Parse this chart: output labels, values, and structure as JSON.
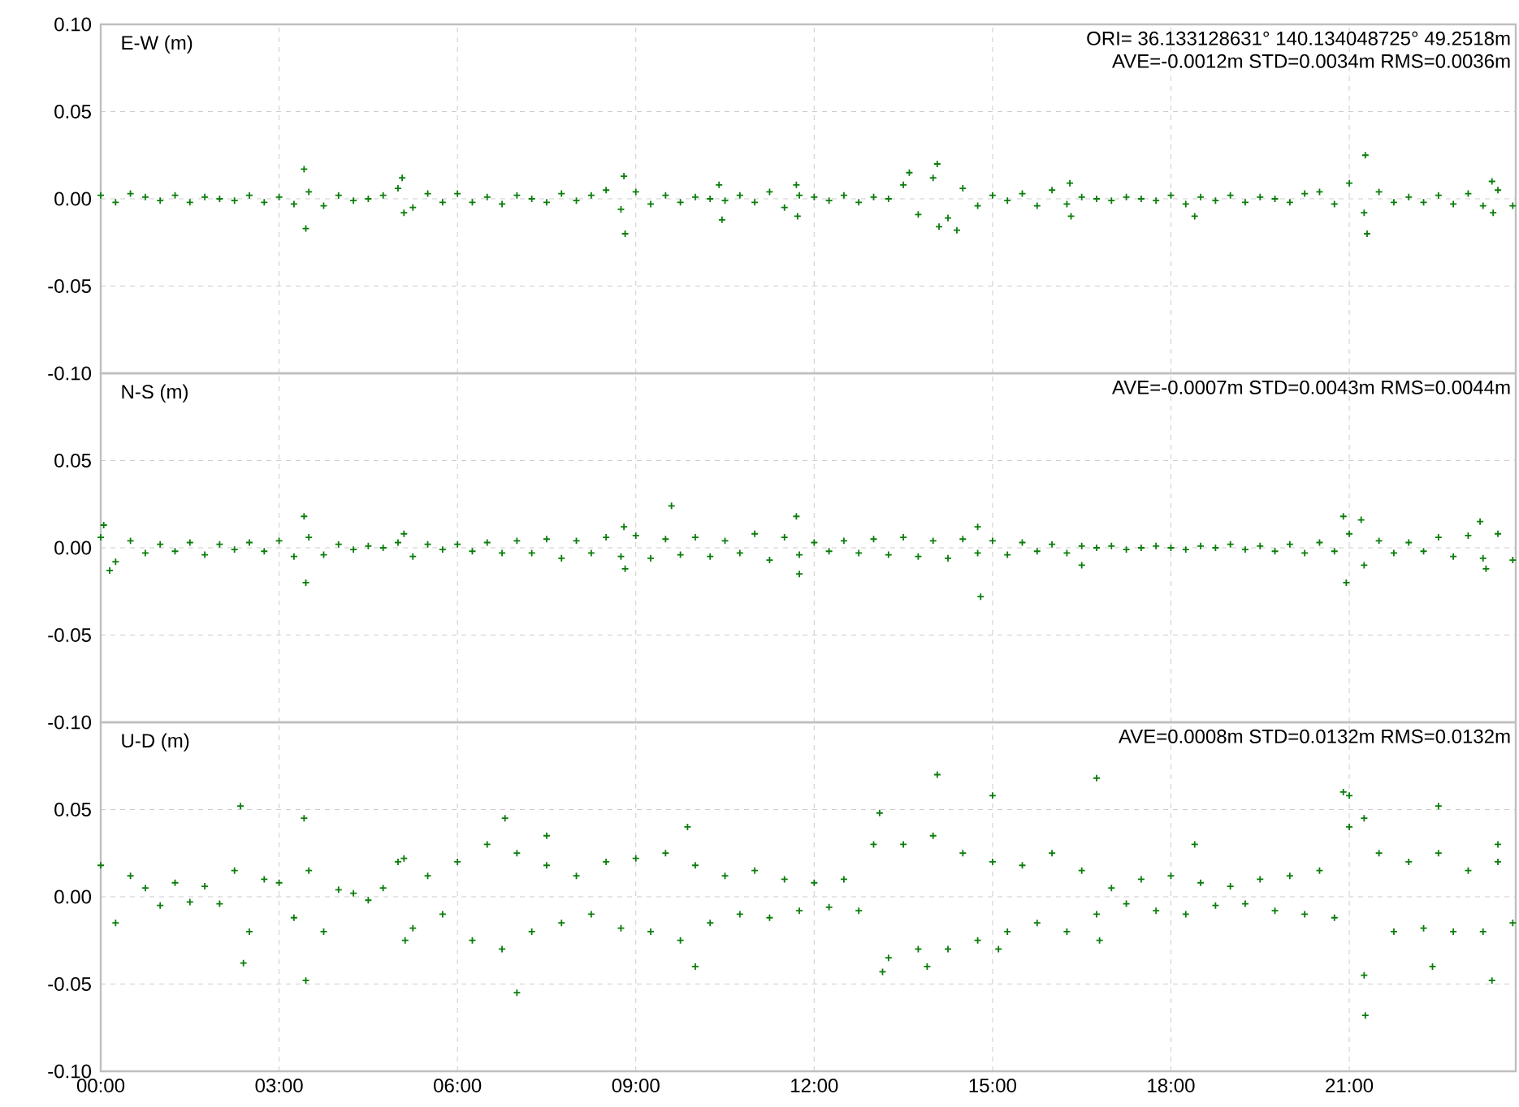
{
  "chart_data": [
    {
      "type": "scatter",
      "title": "E-W (m)",
      "annotations": [
        "ORI= 36.133128631°  140.134048725° 49.2518m",
        "AVE=-0.0012m STD=0.0034m RMS=0.0036m"
      ],
      "xlim": [
        0,
        23.8
      ],
      "ylim": [
        -0.1,
        0.1
      ],
      "xticks": [
        {
          "value": 0,
          "label": null
        },
        {
          "value": 3,
          "label": null
        },
        {
          "value": 6,
          "label": null
        },
        {
          "value": 9,
          "label": null
        },
        {
          "value": 12,
          "label": null
        },
        {
          "value": 15,
          "label": null
        },
        {
          "value": 18,
          "label": null
        },
        {
          "value": 21,
          "label": null
        }
      ],
      "yticks": [
        {
          "value": -0.1,
          "label": "-0.10"
        },
        {
          "value": -0.05,
          "label": "-0.05"
        },
        {
          "value": 0,
          "label": "0.00"
        },
        {
          "value": 0.05,
          "label": "0.05"
        },
        {
          "value": 0.1,
          "label": "0.10"
        }
      ],
      "tick_labels": "y",
      "grid": true,
      "marker": "cross",
      "series": [
        {
          "color": "#0a7d0a",
          "x": [
            0,
            0.25,
            0.5,
            0.75,
            1,
            1.25,
            1.5,
            1.75,
            2,
            2.25,
            2.5,
            2.75,
            3,
            3.25,
            3.5,
            3.75,
            4,
            4.25,
            4.5,
            4.75,
            5,
            5.25,
            5.5,
            5.75,
            6,
            6.25,
            6.5,
            6.75,
            7,
            7.25,
            7.5,
            7.75,
            8,
            8.25,
            8.5,
            8.75,
            9,
            9.25,
            9.5,
            9.75,
            10,
            10.25,
            10.5,
            10.75,
            11,
            11.25,
            11.5,
            11.75,
            12,
            12.25,
            12.5,
            12.75,
            13,
            13.25,
            13.5,
            13.75,
            14,
            14.25,
            14.5,
            14.75,
            15,
            15.25,
            15.5,
            15.75,
            16,
            16.25,
            16.5,
            16.75,
            17,
            17.25,
            17.5,
            17.75,
            18,
            18.25,
            18.5,
            18.75,
            19,
            19.25,
            19.5,
            19.75,
            20,
            20.25,
            20.5,
            20.75,
            21,
            21.25,
            21.5,
            21.75,
            22,
            22.25,
            22.5,
            22.75,
            23,
            23.25,
            23.5,
            23.75,
            3.42,
            3.45,
            5.07,
            5.1,
            8.8,
            8.82,
            10.4,
            10.45,
            11.7,
            11.72,
            13.6,
            14.07,
            14.1,
            14.4,
            16.3,
            16.32,
            18.4,
            21.27,
            21.3,
            23.4,
            23.42
          ],
          "values": [
            0.002,
            -0.002,
            0.003,
            0.001,
            -0.001,
            0.002,
            -0.002,
            0.001,
            0.0,
            -0.001,
            0.002,
            -0.002,
            0.001,
            -0.003,
            0.004,
            -0.004,
            0.002,
            -0.001,
            0.0,
            0.002,
            0.006,
            -0.005,
            0.003,
            -0.002,
            0.003,
            -0.002,
            0.001,
            -0.003,
            0.002,
            0.0,
            -0.002,
            0.003,
            -0.001,
            0.002,
            0.005,
            -0.006,
            0.004,
            -0.003,
            0.002,
            -0.002,
            0.001,
            0.0,
            -0.001,
            0.002,
            -0.002,
            0.004,
            -0.005,
            0.002,
            0.001,
            -0.001,
            0.002,
            -0.002,
            0.001,
            0.0,
            0.008,
            -0.009,
            0.012,
            -0.011,
            0.006,
            -0.004,
            0.002,
            -0.001,
            0.003,
            -0.004,
            0.005,
            -0.003,
            0.001,
            0.0,
            -0.001,
            0.001,
            0.0,
            -0.001,
            0.002,
            -0.003,
            0.001,
            -0.001,
            0.002,
            -0.002,
            0.001,
            0.0,
            -0.002,
            0.003,
            0.004,
            -0.003,
            0.009,
            -0.008,
            0.004,
            -0.002,
            0.001,
            -0.002,
            0.002,
            -0.003,
            0.003,
            -0.004,
            0.005,
            -0.004,
            0.017,
            -0.017,
            0.012,
            -0.008,
            0.013,
            -0.02,
            0.008,
            -0.012,
            0.008,
            -0.01,
            0.015,
            0.02,
            -0.016,
            -0.018,
            0.009,
            -0.01,
            -0.01,
            0.025,
            -0.02,
            0.01,
            -0.008
          ]
        }
      ]
    },
    {
      "type": "scatter",
      "title": "N-S (m)",
      "annotations": [
        "AVE=-0.0007m STD=0.0043m RMS=0.0044m"
      ],
      "xlim": [
        0,
        23.8
      ],
      "ylim": [
        -0.1,
        0.1
      ],
      "xticks": [
        {
          "value": 0,
          "label": null
        },
        {
          "value": 3,
          "label": null
        },
        {
          "value": 6,
          "label": null
        },
        {
          "value": 9,
          "label": null
        },
        {
          "value": 12,
          "label": null
        },
        {
          "value": 15,
          "label": null
        },
        {
          "value": 18,
          "label": null
        },
        {
          "value": 21,
          "label": null
        }
      ],
      "yticks": [
        {
          "value": -0.1,
          "label": "-0.10"
        },
        {
          "value": -0.05,
          "label": "-0.05"
        },
        {
          "value": 0,
          "label": "0.00"
        },
        {
          "value": 0.05,
          "label": "0.05"
        },
        {
          "value": 0.1,
          "label": null
        }
      ],
      "tick_labels": "y",
      "grid": true,
      "marker": "cross",
      "series": [
        {
          "color": "#0a7d0a",
          "x": [
            0,
            0.25,
            0.5,
            0.75,
            1,
            1.25,
            1.5,
            1.75,
            2,
            2.25,
            2.5,
            2.75,
            3,
            3.25,
            3.5,
            3.75,
            4,
            4.25,
            4.5,
            4.75,
            5,
            5.25,
            5.5,
            5.75,
            6,
            6.25,
            6.5,
            6.75,
            7,
            7.25,
            7.5,
            7.75,
            8,
            8.25,
            8.5,
            8.75,
            9,
            9.25,
            9.5,
            9.75,
            10,
            10.25,
            10.5,
            10.75,
            11,
            11.25,
            11.5,
            11.75,
            12,
            12.25,
            12.5,
            12.75,
            13,
            13.25,
            13.5,
            13.75,
            14,
            14.25,
            14.5,
            14.75,
            15,
            15.25,
            15.5,
            15.75,
            16,
            16.25,
            16.5,
            16.75,
            17,
            17.25,
            17.5,
            17.75,
            18,
            18.25,
            18.5,
            18.75,
            19,
            19.25,
            19.5,
            19.75,
            20,
            20.25,
            20.5,
            20.75,
            21,
            21.25,
            21.5,
            21.75,
            22,
            22.25,
            22.5,
            22.75,
            23,
            23.25,
            23.5,
            23.75,
            0.05,
            0.15,
            3.42,
            3.45,
            5.1,
            8.8,
            8.82,
            9.6,
            11.7,
            11.75,
            14.8,
            14.75,
            16.5,
            20.9,
            20.95,
            21.2,
            23.2,
            23.3
          ],
          "values": [
            0.006,
            -0.008,
            0.004,
            -0.003,
            0.002,
            -0.002,
            0.003,
            -0.004,
            0.002,
            -0.001,
            0.003,
            -0.002,
            0.004,
            -0.005,
            0.006,
            -0.004,
            0.002,
            -0.001,
            0.001,
            0.0,
            0.003,
            -0.005,
            0.002,
            -0.001,
            0.002,
            -0.002,
            0.003,
            -0.003,
            0.004,
            -0.003,
            0.005,
            -0.006,
            0.004,
            -0.003,
            0.006,
            -0.005,
            0.007,
            -0.006,
            0.005,
            -0.004,
            0.006,
            -0.005,
            0.004,
            -0.003,
            0.008,
            -0.007,
            0.006,
            -0.004,
            0.003,
            -0.002,
            0.004,
            -0.003,
            0.005,
            -0.004,
            0.006,
            -0.005,
            0.004,
            -0.006,
            0.005,
            -0.003,
            0.004,
            -0.004,
            0.003,
            -0.002,
            0.002,
            -0.003,
            0.001,
            0.0,
            0.001,
            -0.001,
            0.0,
            0.001,
            0.0,
            -0.001,
            0.001,
            0.0,
            0.002,
            -0.001,
            0.001,
            -0.002,
            0.002,
            -0.003,
            0.003,
            -0.002,
            0.008,
            -0.01,
            0.004,
            -0.003,
            0.003,
            -0.002,
            0.006,
            -0.005,
            0.007,
            -0.006,
            0.008,
            -0.007,
            0.013,
            -0.013,
            0.018,
            -0.02,
            0.008,
            0.012,
            -0.012,
            0.024,
            0.018,
            -0.015,
            -0.028,
            0.012,
            -0.01,
            0.018,
            -0.02,
            0.016,
            0.015,
            -0.012
          ]
        }
      ]
    },
    {
      "type": "scatter",
      "title": "U-D (m)",
      "annotations": [
        "AVE=0.0008m STD=0.0132m RMS=0.0132m"
      ],
      "xlim": [
        0,
        23.8
      ],
      "ylim": [
        -0.1,
        0.1
      ],
      "xticks": [
        {
          "value": 0,
          "label": "00:00"
        },
        {
          "value": 3,
          "label": "03:00"
        },
        {
          "value": 6,
          "label": "06:00"
        },
        {
          "value": 9,
          "label": "09:00"
        },
        {
          "value": 12,
          "label": "12:00"
        },
        {
          "value": 15,
          "label": "15:00"
        },
        {
          "value": 18,
          "label": "18:00"
        },
        {
          "value": 21,
          "label": "21:00"
        }
      ],
      "yticks": [
        {
          "value": -0.1,
          "label": "-0.10"
        },
        {
          "value": -0.05,
          "label": "-0.05"
        },
        {
          "value": 0,
          "label": "0.00"
        },
        {
          "value": 0.05,
          "label": "0.05"
        },
        {
          "value": 0.1,
          "label": null
        }
      ],
      "grid": true,
      "marker": "cross",
      "series": [
        {
          "color": "#0a7d0a",
          "x": [
            0,
            0.25,
            0.5,
            0.75,
            1,
            1.25,
            1.5,
            1.75,
            2,
            2.25,
            2.5,
            2.75,
            3,
            3.25,
            3.5,
            3.75,
            4,
            4.25,
            4.5,
            4.75,
            5,
            5.25,
            5.5,
            5.75,
            6,
            6.25,
            6.5,
            6.75,
            7,
            7.25,
            7.5,
            7.75,
            8,
            8.25,
            8.5,
            8.75,
            9,
            9.25,
            9.5,
            9.75,
            10,
            10.25,
            10.5,
            10.75,
            11,
            11.25,
            11.5,
            11.75,
            12,
            12.25,
            12.5,
            12.75,
            13,
            13.25,
            13.5,
            13.75,
            14,
            14.25,
            14.5,
            14.75,
            15,
            15.25,
            15.5,
            15.75,
            16,
            16.25,
            16.5,
            16.75,
            17,
            17.25,
            17.5,
            17.75,
            18,
            18.25,
            18.5,
            18.75,
            19,
            19.25,
            19.5,
            19.75,
            20,
            20.25,
            20.5,
            20.75,
            21,
            21.25,
            21.5,
            21.75,
            22,
            22.25,
            22.5,
            22.75,
            23,
            23.25,
            23.5,
            23.75,
            2.35,
            2.4,
            3.42,
            3.45,
            5.1,
            5.12,
            6.8,
            7.0,
            7.5,
            9.87,
            10.0,
            13.1,
            13.15,
            14.07,
            13.9,
            15.0,
            15.1,
            16.75,
            16.8,
            18.4,
            20.9,
            21.0,
            21.27,
            21.25,
            22.5,
            22.4,
            23.4,
            23.5
          ],
          "values": [
            0.018,
            -0.015,
            0.012,
            0.005,
            -0.005,
            0.008,
            -0.003,
            0.006,
            -0.004,
            0.015,
            -0.02,
            0.01,
            0.008,
            -0.012,
            0.015,
            -0.02,
            0.004,
            0.002,
            -0.002,
            0.005,
            0.02,
            -0.018,
            0.012,
            -0.01,
            0.02,
            -0.025,
            0.03,
            -0.03,
            0.025,
            -0.02,
            0.018,
            -0.015,
            0.012,
            -0.01,
            0.02,
            -0.018,
            0.022,
            -0.02,
            0.025,
            -0.025,
            0.018,
            -0.015,
            0.012,
            -0.01,
            0.015,
            -0.012,
            0.01,
            -0.008,
            0.008,
            -0.006,
            0.01,
            -0.008,
            0.03,
            -0.035,
            0.03,
            -0.03,
            0.035,
            -0.03,
            0.025,
            -0.025,
            0.02,
            -0.02,
            0.018,
            -0.015,
            0.025,
            -0.02,
            0.015,
            -0.01,
            0.005,
            -0.004,
            0.01,
            -0.008,
            0.012,
            -0.01,
            0.008,
            -0.005,
            0.006,
            -0.004,
            0.01,
            -0.008,
            0.012,
            -0.01,
            0.015,
            -0.012,
            0.04,
            -0.045,
            0.025,
            -0.02,
            0.02,
            -0.018,
            0.025,
            -0.02,
            0.015,
            -0.02,
            0.02,
            -0.015,
            0.052,
            -0.038,
            0.045,
            -0.048,
            0.022,
            -0.025,
            0.045,
            -0.055,
            0.035,
            0.04,
            -0.04,
            0.048,
            -0.043,
            0.07,
            -0.04,
            0.058,
            -0.03,
            0.068,
            -0.025,
            0.03,
            0.06,
            0.058,
            -0.068,
            0.045,
            0.052,
            -0.04,
            -0.048,
            0.03
          ]
        }
      ]
    }
  ]
}
